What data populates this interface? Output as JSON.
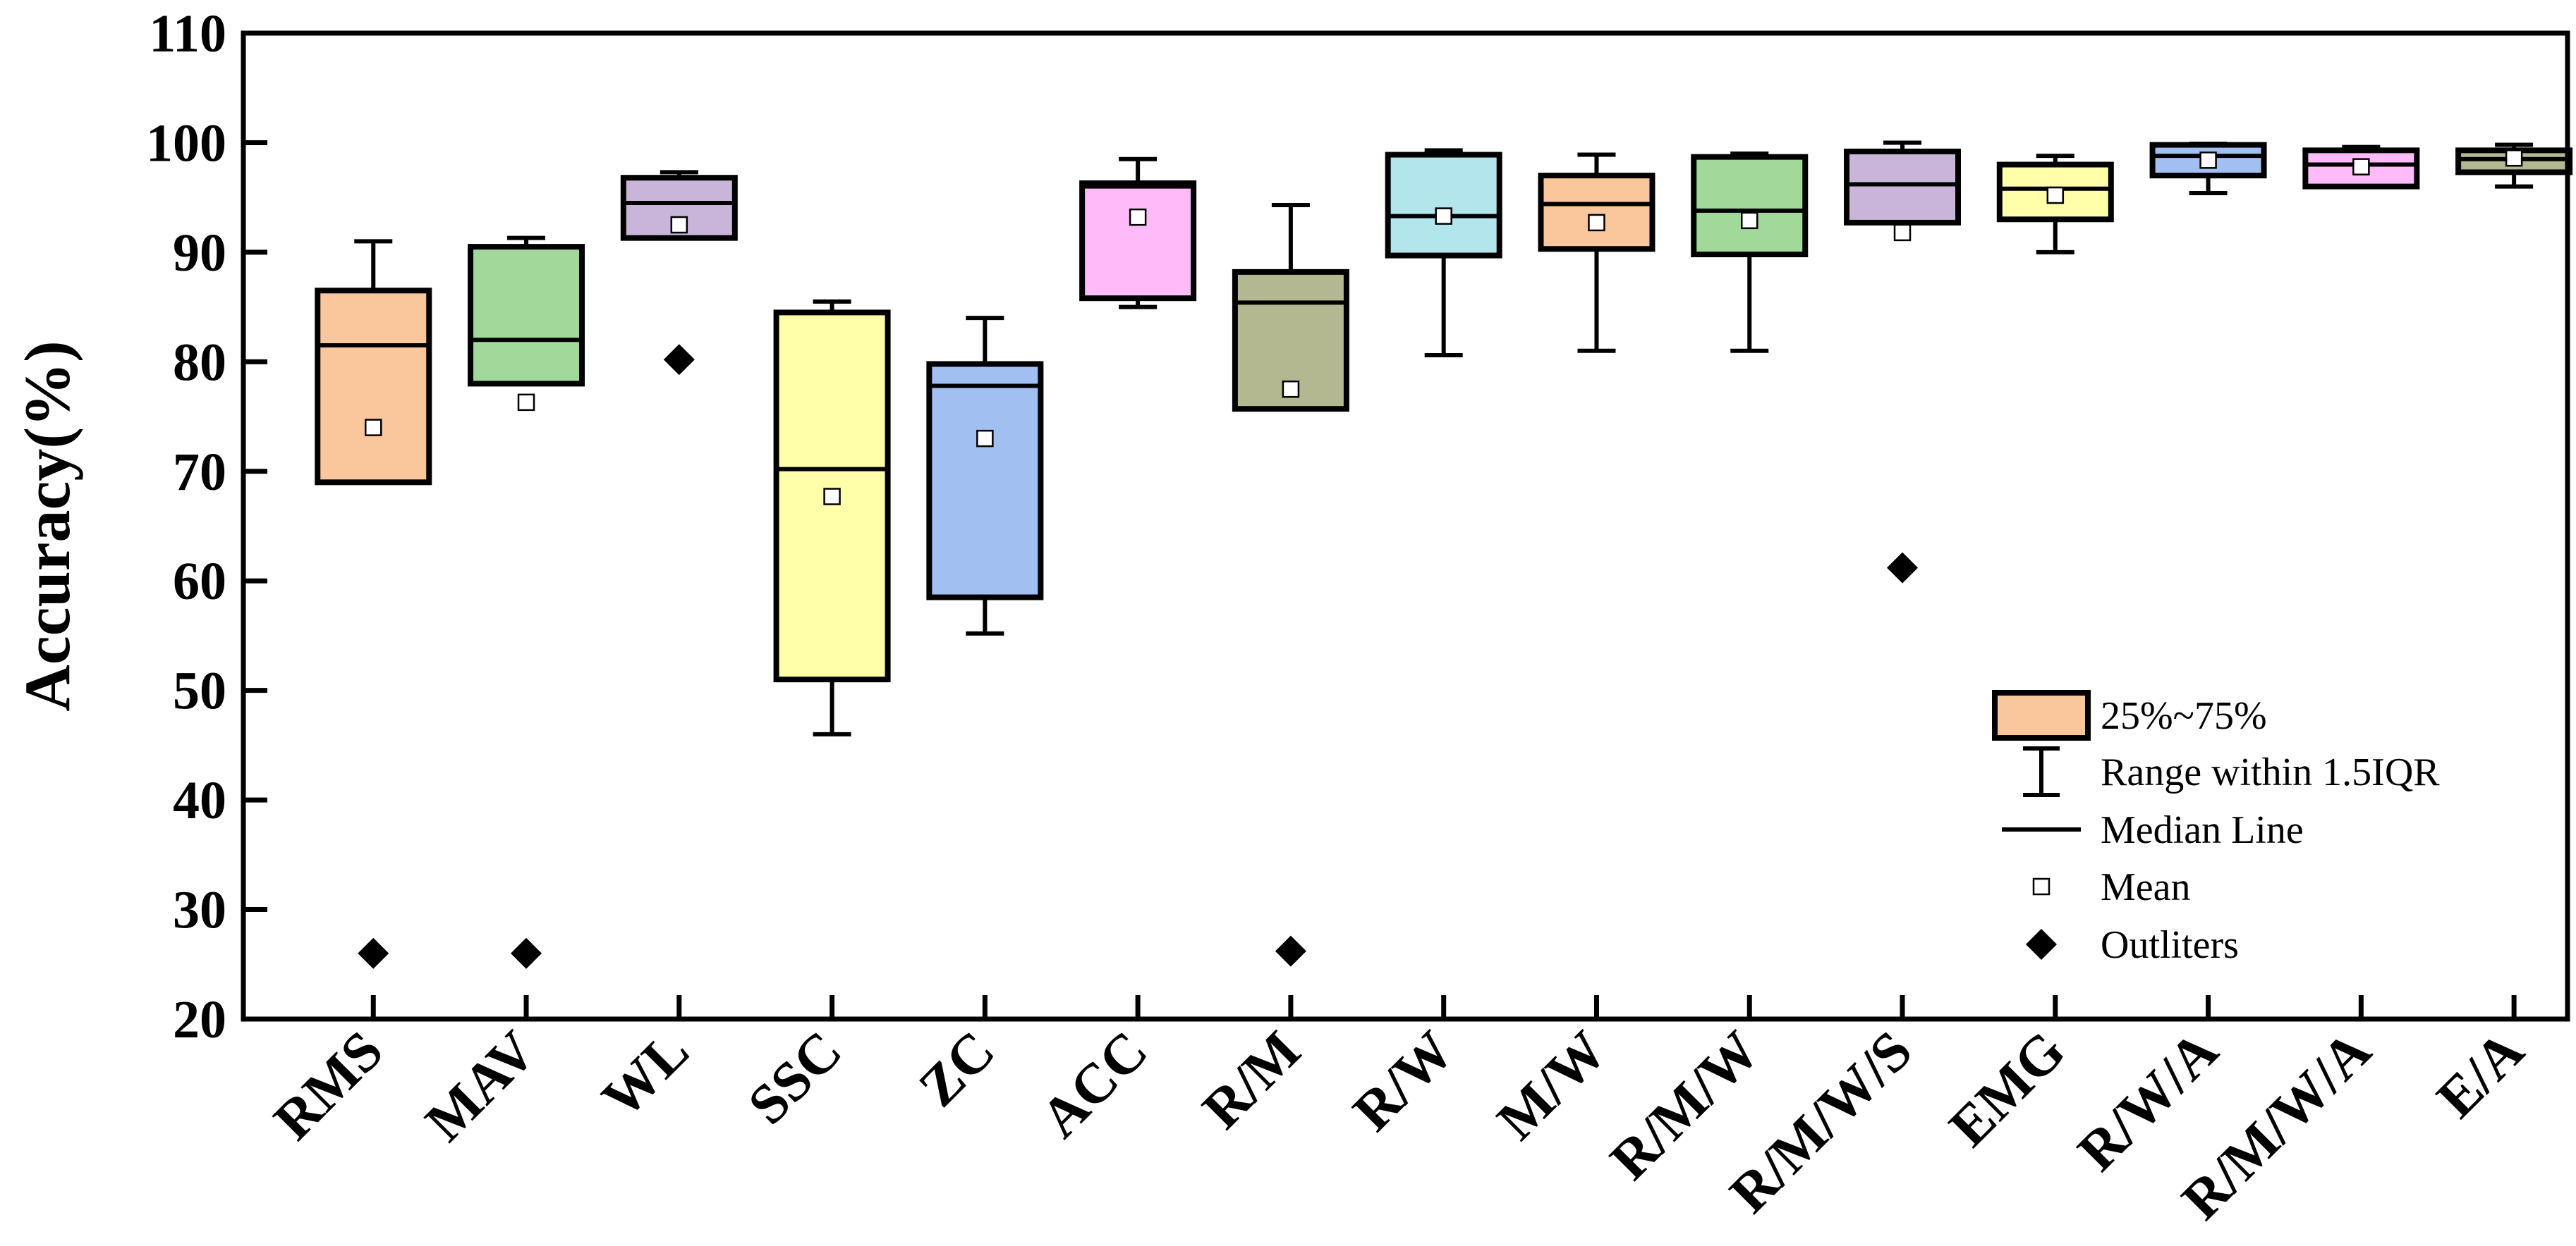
{
  "chart_data": {
    "type": "box",
    "title": "",
    "xlabel": "",
    "ylabel": "Accuracy(%)",
    "ylim": [
      20,
      110
    ],
    "yticks": [
      20,
      30,
      40,
      50,
      60,
      70,
      80,
      90,
      100,
      110
    ],
    "categories": [
      "RMS",
      "MAV",
      "WL",
      "SSC",
      "ZC",
      "ACC",
      "R/M",
      "R/W",
      "M/W",
      "R/M/W",
      "R/M/W/S",
      "EMG",
      "R/W/A",
      "R/M/W/A",
      "E/A"
    ],
    "boxes": [
      {
        "name": "RMS",
        "color": "#F9C79B",
        "q1": 69,
        "median": 81.5,
        "q3": 86.5,
        "whisker_low": 69,
        "whisker_high": 91,
        "mean": 74,
        "outliers": [
          26
        ]
      },
      {
        "name": "MAV",
        "color": "#A1D99B",
        "q1": 78,
        "median": 82,
        "q3": 90.5,
        "whisker_low": 78,
        "whisker_high": 91.3,
        "mean": 76.3,
        "outliers": [
          26
        ]
      },
      {
        "name": "WL",
        "color": "#C9B5D9",
        "q1": 91.3,
        "median": 94.5,
        "q3": 96.8,
        "whisker_low": 91.3,
        "whisker_high": 97.3,
        "mean": 92.5,
        "outliers": [
          80.2
        ]
      },
      {
        "name": "SSC",
        "color": "#FFFFAA",
        "q1": 51,
        "median": 70.2,
        "q3": 84.5,
        "whisker_low": 46,
        "whisker_high": 85.5,
        "mean": 67.7,
        "outliers": []
      },
      {
        "name": "ZC",
        "color": "#A2BFF2",
        "q1": 58.5,
        "median": 77.8,
        "q3": 79.8,
        "whisker_low": 55.2,
        "whisker_high": 84,
        "mean": 73,
        "outliers": []
      },
      {
        "name": "ACC",
        "color": "#FFBBF9",
        "q1": 85.8,
        "median": 96,
        "q3": 96.3,
        "whisker_low": 85,
        "whisker_high": 98.5,
        "mean": 93.2,
        "outliers": []
      },
      {
        "name": "R/M",
        "color": "#B3B890",
        "q1": 75.7,
        "median": 85.4,
        "q3": 88.2,
        "whisker_low": 75.7,
        "whisker_high": 94.3,
        "mean": 77.5,
        "outliers": [
          26.2
        ]
      },
      {
        "name": "R/W",
        "color": "#B3E5EC",
        "q1": 89.7,
        "median": 93.3,
        "q3": 98.9,
        "whisker_low": 80.6,
        "whisker_high": 99.3,
        "mean": 93.3,
        "outliers": []
      },
      {
        "name": "M/W",
        "color": "#F9C79B",
        "q1": 90.3,
        "median": 94.4,
        "q3": 97,
        "whisker_low": 81,
        "whisker_high": 98.9,
        "mean": 92.7,
        "outliers": []
      },
      {
        "name": "R/M/W",
        "color": "#A1D99B",
        "q1": 89.8,
        "median": 93.8,
        "q3": 98.7,
        "whisker_low": 81,
        "whisker_high": 99,
        "mean": 92.9,
        "outliers": []
      },
      {
        "name": "R/M/W/S",
        "color": "#C9B5D9",
        "q1": 92.7,
        "median": 96.2,
        "q3": 99.2,
        "whisker_low": 92.7,
        "whisker_high": 100,
        "mean": 91.8,
        "outliers": [
          61.2
        ]
      },
      {
        "name": "EMG",
        "color": "#FFFFAA",
        "q1": 93,
        "median": 95.8,
        "q3": 98,
        "whisker_low": 90,
        "whisker_high": 98.8,
        "mean": 95.2,
        "outliers": []
      },
      {
        "name": "R/W/A",
        "color": "#A2BFF2",
        "q1": 97,
        "median": 98.8,
        "q3": 99.8,
        "whisker_low": 95.4,
        "whisker_high": 99.9,
        "mean": 98.4,
        "outliers": []
      },
      {
        "name": "R/M/W/A",
        "color": "#FFBBF9",
        "q1": 96,
        "median": 98,
        "q3": 99.3,
        "whisker_low": 96,
        "whisker_high": 99.6,
        "mean": 97.8,
        "outliers": []
      },
      {
        "name": "E/A",
        "color": "#B3B890",
        "q1": 97.3,
        "median": 98.5,
        "q3": 99.3,
        "whisker_low": 96,
        "whisker_high": 99.8,
        "mean": 98.6,
        "outliers": []
      }
    ],
    "legend": {
      "position": "bottom-right",
      "entries": [
        {
          "kind": "box",
          "label": "25%~75%",
          "color": "#F9C79B"
        },
        {
          "kind": "whisker",
          "label": "Range within 1.5IQR"
        },
        {
          "kind": "median",
          "label": "Median Line"
        },
        {
          "kind": "mean",
          "label": "Mean"
        },
        {
          "kind": "outlier",
          "label": "Outliters"
        }
      ]
    },
    "grid": false
  }
}
